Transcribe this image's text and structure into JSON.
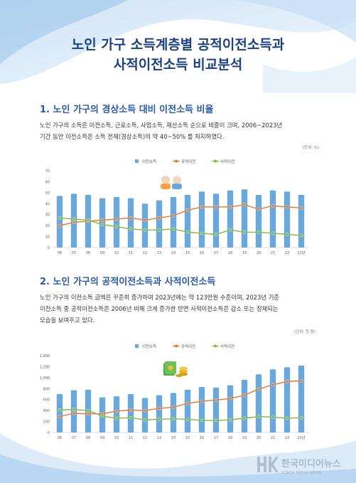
{
  "title": {
    "line1": "노인 가구 소득계층별 공적이전소득과",
    "line2": "사적이전소득 비교분석"
  },
  "section1": {
    "heading": "1. 노인 가구의 경상소득 대비 이전소득 비율",
    "paragraph": [
      "노인 가구의 소득은 이전소득, 근로소득, 사업소득, 재산소득 순으로 비중이 크며, 2006~2023년",
      "기간 동안 이전소득은 소득 전체(경상소득)의 약 40~50% 를 차지하였다."
    ],
    "unit": "(단위: %)"
  },
  "section2": {
    "heading": "2. 노인 가구의 공적이전소득과 사적이전소득",
    "paragraph": [
      "노인 가구의 이전소득 금액은 꾸준히 증가하여 2023년에는 약 123만원 수준이며, 2023년 기준",
      "이전소득 중 공적이전소득은 2006년 비해 크게 증가한 반면 사적이전소득은 감소 또는 정체되는",
      "모습을 보여주고 있다."
    ],
    "unit": "(단위: 천 원)"
  },
  "watermark": {
    "name": "한국미디어뉴스",
    "sub": "KOREA MEDIA NEWS"
  },
  "colors": {
    "title": "#1c3f86",
    "heading": "#2a5aa8",
    "bar": "#6aa8dc",
    "public": "#e8762b",
    "private": "#7dbb3c"
  },
  "chart_data": [
    {
      "type": "bar",
      "categories": [
        "06",
        "07",
        "08",
        "09",
        "10",
        "11",
        "12",
        "13",
        "14",
        "15",
        "16",
        "17",
        "18",
        "19",
        "20",
        "21",
        "22",
        "23년"
      ],
      "series": [
        {
          "name": "이전소득",
          "kind": "bar",
          "values": [
            47,
            49,
            48,
            45,
            46,
            45,
            40,
            43,
            46,
            48,
            51,
            49,
            52,
            53,
            48,
            52,
            51,
            48
          ]
        },
        {
          "name": "공적이전",
          "kind": "line",
          "values": [
            20,
            23,
            24,
            25,
            26,
            27,
            25,
            27,
            29,
            34,
            37,
            37,
            37,
            39,
            35,
            38,
            37,
            36
          ]
        },
        {
          "name": "사적이전",
          "kind": "line",
          "values": [
            27,
            26,
            25,
            21,
            19,
            17,
            16,
            16,
            17,
            14,
            13,
            12,
            16,
            14,
            14,
            13,
            12,
            11
          ]
        }
      ],
      "ylim": [
        0,
        70
      ],
      "yticks": [
        0,
        10,
        20,
        30,
        40,
        50,
        60,
        70
      ],
      "legend": "top-center",
      "grid": false
    },
    {
      "type": "bar",
      "categories": [
        "06",
        "07",
        "08",
        "09",
        "10",
        "11",
        "12",
        "13",
        "14",
        "15",
        "16",
        "17",
        "18",
        "19",
        "20",
        "21",
        "22",
        "23년"
      ],
      "series": [
        {
          "name": "이전소득",
          "kind": "bar",
          "values": [
            700,
            770,
            780,
            640,
            660,
            700,
            630,
            680,
            720,
            780,
            830,
            820,
            860,
            960,
            1060,
            1150,
            1190,
            1220
          ]
        },
        {
          "name": "공적이전",
          "kind": "line",
          "values": [
            290,
            350,
            340,
            340,
            390,
            410,
            400,
            440,
            460,
            530,
            570,
            590,
            620,
            680,
            790,
            870,
            930,
            940
          ]
        },
        {
          "name": "사적이전",
          "kind": "line",
          "values": [
            410,
            420,
            400,
            300,
            260,
            270,
            230,
            240,
            250,
            240,
            220,
            220,
            230,
            260,
            290,
            280,
            260,
            270
          ]
        }
      ],
      "ylim": [
        0,
        1400
      ],
      "yticks": [
        0,
        200,
        400,
        600,
        800,
        1000,
        1200,
        1400
      ],
      "legend": "top-center",
      "grid": false
    }
  ]
}
